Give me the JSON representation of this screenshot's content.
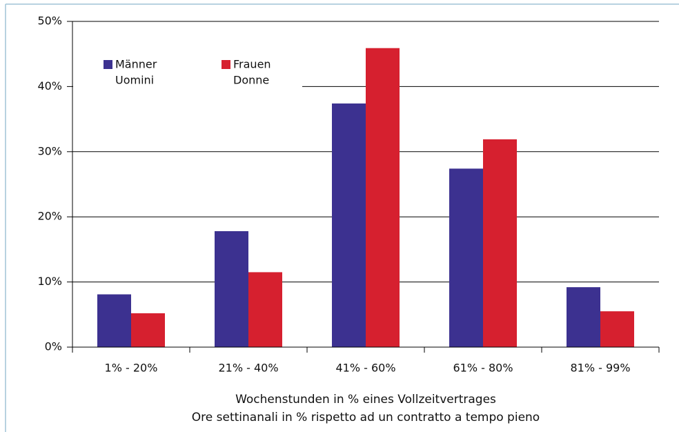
{
  "chart_data": {
    "type": "bar",
    "categories": [
      "1% - 20%",
      "21% - 40%",
      "41% - 60%",
      "61% - 80%",
      "81% - 99%"
    ],
    "series": [
      {
        "name": [
          "Männer",
          "Uomini"
        ],
        "color": "#3c3190",
        "values": [
          8.1,
          17.8,
          37.4,
          27.4,
          9.2
        ]
      },
      {
        "name": [
          "Frauen",
          "Donne"
        ],
        "color": "#d6202f",
        "values": [
          5.2,
          11.5,
          45.9,
          31.9,
          5.5
        ]
      }
    ],
    "ylim": [
      0,
      50
    ],
    "yticks": [
      {
        "value": 0,
        "label": "0%"
      },
      {
        "value": 10,
        "label": "10%"
      },
      {
        "value": 20,
        "label": "20%"
      },
      {
        "value": 30,
        "label": "30%"
      },
      {
        "value": 40,
        "label": "40%"
      },
      {
        "value": 50,
        "label": "50%"
      }
    ],
    "xlabel": [
      "Wochenstunden in % eines Vollzeitvertrages",
      "Ore settinanali in % rispetto ad un contratto a tempo pieno"
    ],
    "grid": true,
    "legend": "top-left"
  }
}
